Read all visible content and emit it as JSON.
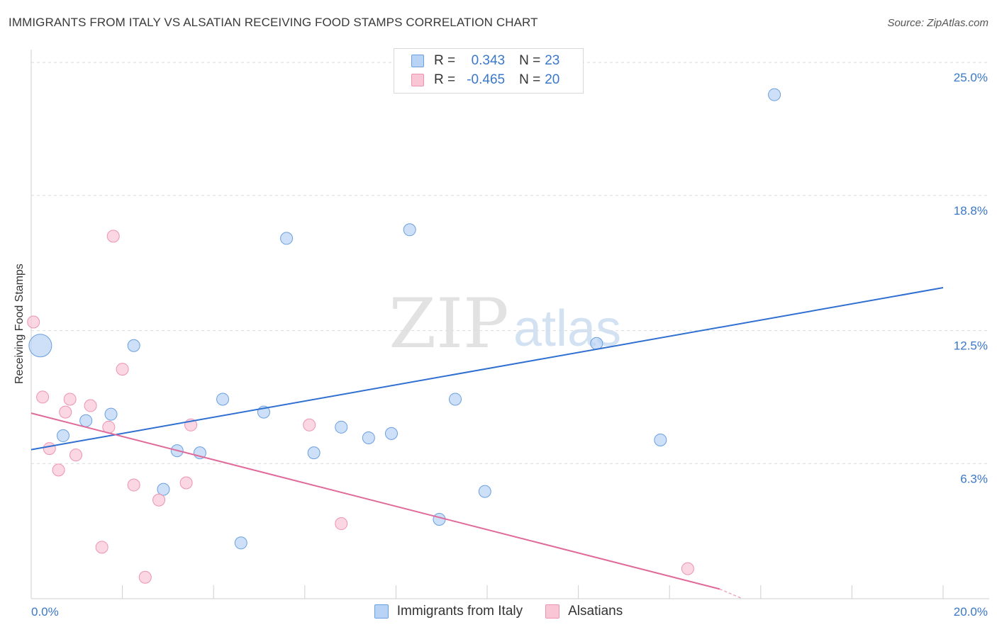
{
  "header": {
    "title": "IMMIGRANTS FROM ITALY VS ALSATIAN RECEIVING FOOD STAMPS CORRELATION CHART",
    "source": "Source: ZipAtlas.com"
  },
  "watermark": {
    "zip": "ZIP",
    "atlas": "atlas"
  },
  "legend": {
    "rows": [
      {
        "r_label": "R = ",
        "r_value": "0.343",
        "n_label": "N = ",
        "n_value": "23"
      },
      {
        "r_label": "R = ",
        "r_value": "-0.465",
        "n_label": "N = ",
        "n_value": "20"
      }
    ]
  },
  "chart_data": {
    "type": "scatter",
    "title": "IMMIGRANTS FROM ITALY VS ALSATIAN RECEIVING FOOD STAMPS CORRELATION CHART",
    "xlabel": "",
    "ylabel": "Receiving Food Stamps",
    "xlim": [
      0,
      20
    ],
    "ylim": [
      0,
      25.6
    ],
    "x_ticks": [
      0,
      20
    ],
    "x_tick_labels": [
      "0.0%",
      "20.0%"
    ],
    "y_ticks": [
      6.3,
      12.5,
      18.8,
      25.0
    ],
    "y_tick_labels": [
      "6.3%",
      "12.5%",
      "18.8%",
      "25.0%"
    ],
    "grid": true,
    "legend_position": "top-center",
    "colors": {
      "italy_fill": "#b8d3f4",
      "italy_stroke": "#6a9fe0",
      "italy_line": "#2f6fd1",
      "alsatian_fill": "#f8c6d5",
      "alsatian_stroke": "#ee93b0",
      "alsatian_line": "#e06a99"
    },
    "series": [
      {
        "name": "Immigrants from Italy",
        "points": [
          {
            "x": 0.2,
            "y": 11.8,
            "size": "large"
          },
          {
            "x": 0.7,
            "y": 7.6
          },
          {
            "x": 1.2,
            "y": 8.3
          },
          {
            "x": 1.75,
            "y": 8.6
          },
          {
            "x": 2.25,
            "y": 11.8
          },
          {
            "x": 2.9,
            "y": 5.1
          },
          {
            "x": 3.2,
            "y": 6.9
          },
          {
            "x": 3.7,
            "y": 6.8
          },
          {
            "x": 4.2,
            "y": 9.3
          },
          {
            "x": 4.6,
            "y": 2.6
          },
          {
            "x": 5.1,
            "y": 8.7
          },
          {
            "x": 5.6,
            "y": 16.8
          },
          {
            "x": 6.2,
            "y": 6.8
          },
          {
            "x": 6.8,
            "y": 8.0
          },
          {
            "x": 7.4,
            "y": 7.5
          },
          {
            "x": 7.9,
            "y": 7.7
          },
          {
            "x": 8.3,
            "y": 17.2
          },
          {
            "x": 8.95,
            "y": 3.7
          },
          {
            "x": 9.3,
            "y": 9.3
          },
          {
            "x": 9.95,
            "y": 5.0
          },
          {
            "x": 12.4,
            "y": 11.9
          },
          {
            "x": 13.8,
            "y": 7.4
          },
          {
            "x": 16.3,
            "y": 23.5
          }
        ],
        "trend": {
          "x": [
            0,
            20
          ],
          "y": [
            6.95,
            14.5
          ]
        }
      },
      {
        "name": "Alsatians",
        "points": [
          {
            "x": 0.05,
            "y": 12.9
          },
          {
            "x": 0.25,
            "y": 9.4
          },
          {
            "x": 0.4,
            "y": 7.0
          },
          {
            "x": 0.6,
            "y": 6.0
          },
          {
            "x": 0.75,
            "y": 8.7
          },
          {
            "x": 0.85,
            "y": 9.3
          },
          {
            "x": 0.98,
            "y": 6.7
          },
          {
            "x": 1.3,
            "y": 9.0
          },
          {
            "x": 1.55,
            "y": 2.4
          },
          {
            "x": 1.7,
            "y": 8.0
          },
          {
            "x": 1.8,
            "y": 16.9
          },
          {
            "x": 2.0,
            "y": 10.7
          },
          {
            "x": 2.25,
            "y": 5.3
          },
          {
            "x": 2.5,
            "y": 1.0
          },
          {
            "x": 2.8,
            "y": 4.6
          },
          {
            "x": 3.4,
            "y": 5.4
          },
          {
            "x": 3.5,
            "y": 8.1
          },
          {
            "x": 6.1,
            "y": 8.1
          },
          {
            "x": 6.8,
            "y": 3.5
          },
          {
            "x": 14.4,
            "y": 1.4
          }
        ],
        "trend": {
          "x": [
            0,
            15.1
          ],
          "y": [
            8.65,
            0.45
          ]
        },
        "trend_dashed": {
          "x": [
            15.1,
            15.6
          ],
          "y": [
            0.45,
            0.0
          ]
        }
      }
    ]
  },
  "bottom_legend": {
    "italy_label": "Immigrants from Italy",
    "alsatian_label": "Alsatians"
  }
}
